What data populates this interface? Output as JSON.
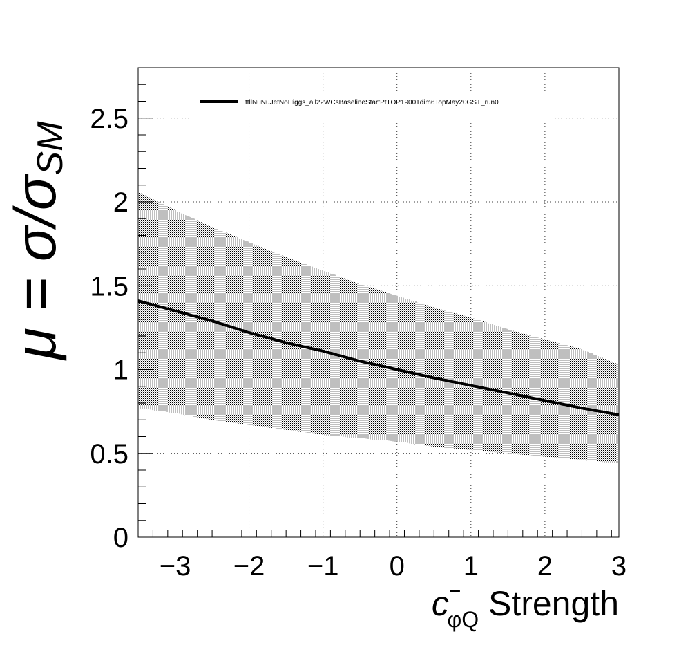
{
  "chart_data": {
    "type": "line",
    "title": "",
    "xlim": [
      -3.5,
      3
    ],
    "ylim": [
      0,
      2.8
    ],
    "grid": true,
    "legend_placement": "top",
    "x_ticks": [
      -3,
      -2,
      -1,
      0,
      1,
      2,
      3
    ],
    "x_tick_labels": [
      "−3",
      "−2",
      "−1",
      "0",
      "1",
      "2",
      "3"
    ],
    "y_ticks": [
      0,
      0.5,
      1,
      1.5,
      2,
      2.5
    ],
    "y_tick_labels": [
      "0",
      "0.5",
      "1",
      "1.5",
      "2",
      "2.5"
    ],
    "xlabel": {
      "base": "c",
      "superscript": "−",
      "subscript": "φQ",
      "rest": " Strength"
    },
    "ylabel": {
      "base": "μ = σ/σ",
      "subscript": "SM"
    },
    "series": [
      {
        "name": "ttllNuNuJetNoHiggs_all22WCsBaselineStartPtTOP19001dim6TopMay20GST_run0",
        "color": "#000000",
        "x": [
          -3.5,
          -3,
          -2.5,
          -2,
          -1.5,
          -1,
          -0.5,
          0,
          0.5,
          1,
          1.5,
          2,
          2.5,
          3
        ],
        "y": [
          1.41,
          1.35,
          1.29,
          1.22,
          1.16,
          1.11,
          1.05,
          1.0,
          0.95,
          0.905,
          0.86,
          0.815,
          0.77,
          0.73
        ],
        "band_upper": [
          2.06,
          1.95,
          1.85,
          1.76,
          1.67,
          1.59,
          1.51,
          1.44,
          1.37,
          1.31,
          1.24,
          1.18,
          1.12,
          1.03
        ],
        "band_lower": [
          0.77,
          0.74,
          0.7,
          0.67,
          0.64,
          0.61,
          0.59,
          0.57,
          0.54,
          0.52,
          0.5,
          0.48,
          0.46,
          0.44
        ]
      }
    ]
  }
}
